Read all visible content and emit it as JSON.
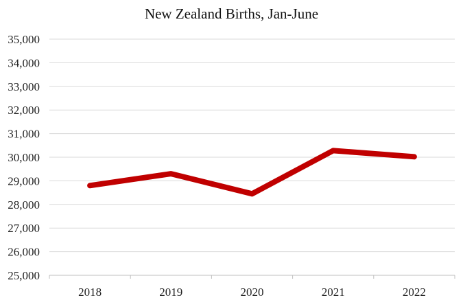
{
  "chart_data": {
    "type": "line",
    "title": "New Zealand Births, Jan-June",
    "xlabel": "",
    "ylabel": "",
    "categories": [
      "2018",
      "2019",
      "2020",
      "2021",
      "2022"
    ],
    "series": [
      {
        "values": [
          28800,
          29300,
          28450,
          30280,
          30020
        ]
      }
    ],
    "ylim": [
      25000,
      35000
    ],
    "yticks": [
      "25,000",
      "26,000",
      "27,000",
      "28,000",
      "29,000",
      "30,000",
      "31,000",
      "32,000",
      "33,000",
      "34,000",
      "35,000"
    ],
    "grid": true,
    "legend": "none",
    "line_color": "#c00000"
  }
}
